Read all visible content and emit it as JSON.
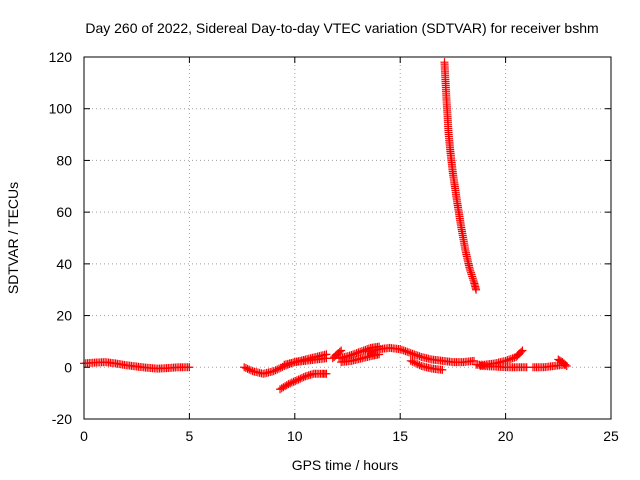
{
  "chart_data": {
    "type": "scatter",
    "title": "Day 260 of 2022, Sidereal Day-to-day VTEC variation (SDTVAR) for receiver bshm",
    "xlabel": "GPS time / hours",
    "ylabel": "SDTVAR / TECUs",
    "xlim": [
      0,
      25
    ],
    "ylim": [
      -20,
      120
    ],
    "xticks": [
      0,
      5,
      10,
      15,
      20,
      25
    ],
    "yticks": [
      -20,
      0,
      20,
      40,
      60,
      80,
      100,
      120
    ],
    "grid": true,
    "marker": "plus",
    "marker_color": "#ff0000",
    "series": [
      {
        "name": "seg1",
        "x": [
          0.0,
          0.5,
          1.0,
          1.5,
          2.0,
          2.5,
          3.0,
          3.5,
          4.0,
          4.5,
          5.0
        ],
        "y": [
          1.5,
          1.8,
          2.0,
          1.5,
          0.8,
          0.3,
          -0.2,
          -0.5,
          -0.3,
          0.0,
          0.0
        ]
      },
      {
        "name": "seg2",
        "x": [
          7.6,
          8.0,
          8.5,
          9.0,
          9.5,
          10.0,
          10.5,
          11.0,
          11.5
        ],
        "y": [
          0.0,
          -1.5,
          -2.5,
          -1.5,
          0.5,
          2.0,
          3.0,
          4.0,
          5.0
        ]
      },
      {
        "name": "seg3",
        "x": [
          9.3,
          9.7,
          10.1,
          10.5,
          10.9,
          11.3,
          11.5
        ],
        "y": [
          -8.5,
          -6.5,
          -5.0,
          -3.5,
          -2.5,
          -2.5,
          -2.5
        ]
      },
      {
        "name": "seg4",
        "x": [
          9.5,
          10.0,
          10.5,
          11.0,
          11.5
        ],
        "y": [
          1.0,
          2.0,
          2.5,
          3.0,
          3.5
        ]
      },
      {
        "name": "seg5",
        "x": [
          11.8,
          12.0,
          12.2
        ],
        "y": [
          3.5,
          5.0,
          6.5
        ]
      },
      {
        "name": "seg6",
        "x": [
          12.1,
          12.6,
          13.1,
          13.6,
          14.0
        ],
        "y": [
          3.5,
          4.5,
          6.0,
          7.5,
          8.0
        ]
      },
      {
        "name": "seg7",
        "x": [
          12.2,
          12.7,
          13.2,
          13.7,
          14.0
        ],
        "y": [
          2.0,
          2.5,
          3.5,
          4.5,
          5.0
        ]
      },
      {
        "name": "seg8",
        "x": [
          13.5,
          14.0,
          14.5,
          15.0,
          15.5,
          16.0,
          16.5,
          17.0,
          17.5,
          18.0,
          18.5
        ],
        "y": [
          6.0,
          7.0,
          7.5,
          7.0,
          5.5,
          4.0,
          3.0,
          2.5,
          2.0,
          2.0,
          2.5
        ]
      },
      {
        "name": "seg9",
        "x": [
          15.5,
          16.0,
          16.5,
          17.0
        ],
        "y": [
          2.5,
          0.5,
          -0.5,
          -1.0
        ]
      },
      {
        "name": "seg10",
        "x": [
          17.1,
          17.2,
          17.3,
          17.4,
          17.5,
          17.7,
          17.9,
          18.1,
          18.3,
          18.5,
          18.6
        ],
        "y": [
          118,
          103,
          90,
          82,
          75,
          64,
          54,
          45,
          38,
          33,
          30
        ]
      },
      {
        "name": "seg11",
        "x": [
          18.6,
          19.0,
          19.5,
          20.0,
          20.5,
          20.8
        ],
        "y": [
          1.0,
          1.0,
          1.5,
          2.5,
          4.0,
          6.5
        ]
      },
      {
        "name": "seg12",
        "x": [
          18.8,
          19.5,
          20.0,
          20.5,
          21.0
        ],
        "y": [
          0.5,
          0.3,
          0.0,
          0.0,
          0.0
        ]
      },
      {
        "name": "seg13",
        "x": [
          21.3,
          21.8,
          22.3,
          22.8
        ],
        "y": [
          0.0,
          0.0,
          0.5,
          1.0
        ]
      },
      {
        "name": "seg14",
        "x": [
          22.5,
          22.7,
          22.9
        ],
        "y": [
          3.0,
          2.0,
          0.5
        ]
      }
    ]
  }
}
